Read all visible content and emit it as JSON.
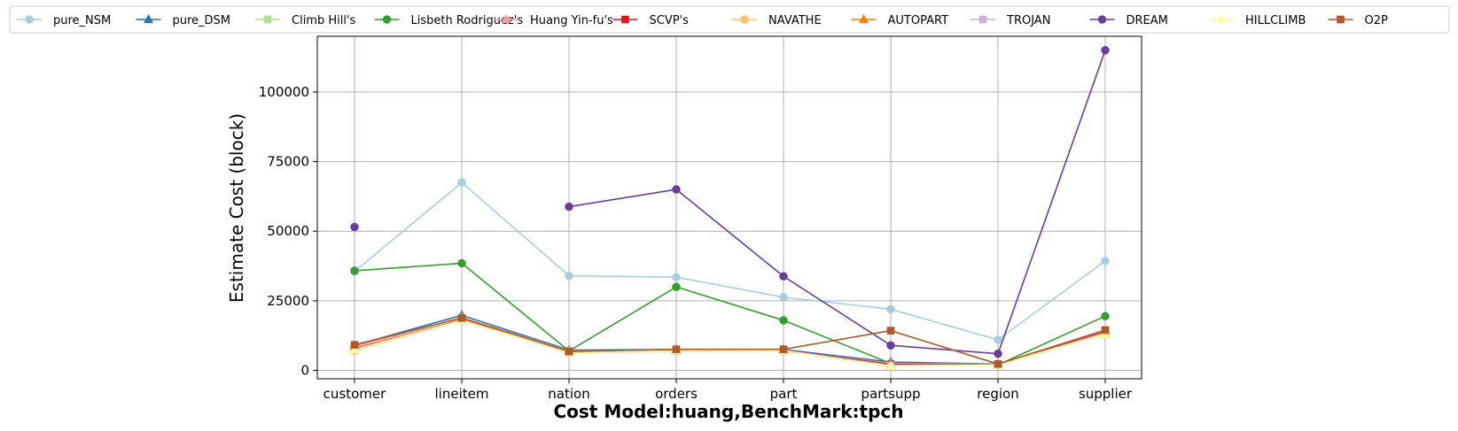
{
  "chart_data": {
    "type": "line",
    "title": "",
    "xlabel": "Cost Model:huang,BenchMark:tpch",
    "ylabel": "Estimate Cost (block)",
    "ylim": [
      -3000,
      120000
    ],
    "yticks": [
      0,
      25000,
      50000,
      75000,
      100000
    ],
    "ytick_labels": [
      "0",
      "25000",
      "50000",
      "75000",
      "100000"
    ],
    "grid": true,
    "legend_position": "top",
    "categories": [
      "customer",
      "lineitem",
      "nation",
      "orders",
      "part",
      "partsupp",
      "region",
      "supplier"
    ],
    "series": [
      {
        "name": "pure_NSM",
        "color": "#a6cee3",
        "marker": "circle",
        "values": [
          35500,
          67500,
          34000,
          33500,
          26300,
          22000,
          11000,
          39300
        ]
      },
      {
        "name": "pure_DSM",
        "color": "#1f78b4",
        "marker": "triangle",
        "values": [
          9000,
          19800,
          7300,
          7500,
          7500,
          3000,
          2300,
          14200
        ]
      },
      {
        "name": "Climb Hill's",
        "color": "#b2df8a",
        "marker": "square",
        "values": [
          7500,
          18000,
          6500,
          7000,
          7000,
          1500,
          2000,
          13000
        ]
      },
      {
        "name": "Lisbeth Rodriguez's",
        "color": "#33a02c",
        "marker": "circle",
        "values": [
          35800,
          38500,
          7000,
          30000,
          18000,
          2500,
          2000,
          19500
        ]
      },
      {
        "name": "Huang Yin-fu's",
        "color": "#fb9a99",
        "marker": "triangle",
        "values": [
          8500,
          19000,
          7000,
          7200,
          7200,
          2500,
          2200,
          14000
        ]
      },
      {
        "name": "SCVP's",
        "color": "#e31a1c",
        "marker": "square",
        "values": [
          7800,
          18200,
          6800,
          7200,
          7300,
          2200,
          2100,
          13800
        ]
      },
      {
        "name": "NAVATHE",
        "color": "#fdbf6f",
        "marker": "circle",
        "values": [
          7200,
          18000,
          6500,
          6800,
          7000,
          1500,
          2000,
          13000
        ]
      },
      {
        "name": "AUTOPART",
        "color": "#ff7f00",
        "marker": "triangle",
        "values": [
          7500,
          18000,
          6500,
          7000,
          7000,
          1800,
          2000,
          13200
        ]
      },
      {
        "name": "TROJAN",
        "color": "#cab2d6",
        "marker": "square",
        "values": [
          7500,
          18000,
          6600,
          7000,
          7200,
          1800,
          2000,
          13500
        ]
      },
      {
        "name": "DREAM",
        "color": "#6a3d9a",
        "marker": "circle",
        "values": [
          51500,
          null,
          58800,
          65000,
          33800,
          9000,
          6000,
          115000
        ]
      },
      {
        "name": "HILLCLIMB",
        "color": "#ffff99",
        "marker": "triangle",
        "values": [
          7500,
          18000,
          6500,
          7000,
          7000,
          1500,
          2000,
          13000
        ]
      },
      {
        "name": "O2P",
        "color": "#b15928",
        "marker": "square",
        "values": [
          9200,
          18800,
          6800,
          7600,
          7600,
          14300,
          2300,
          14500
        ]
      }
    ]
  }
}
